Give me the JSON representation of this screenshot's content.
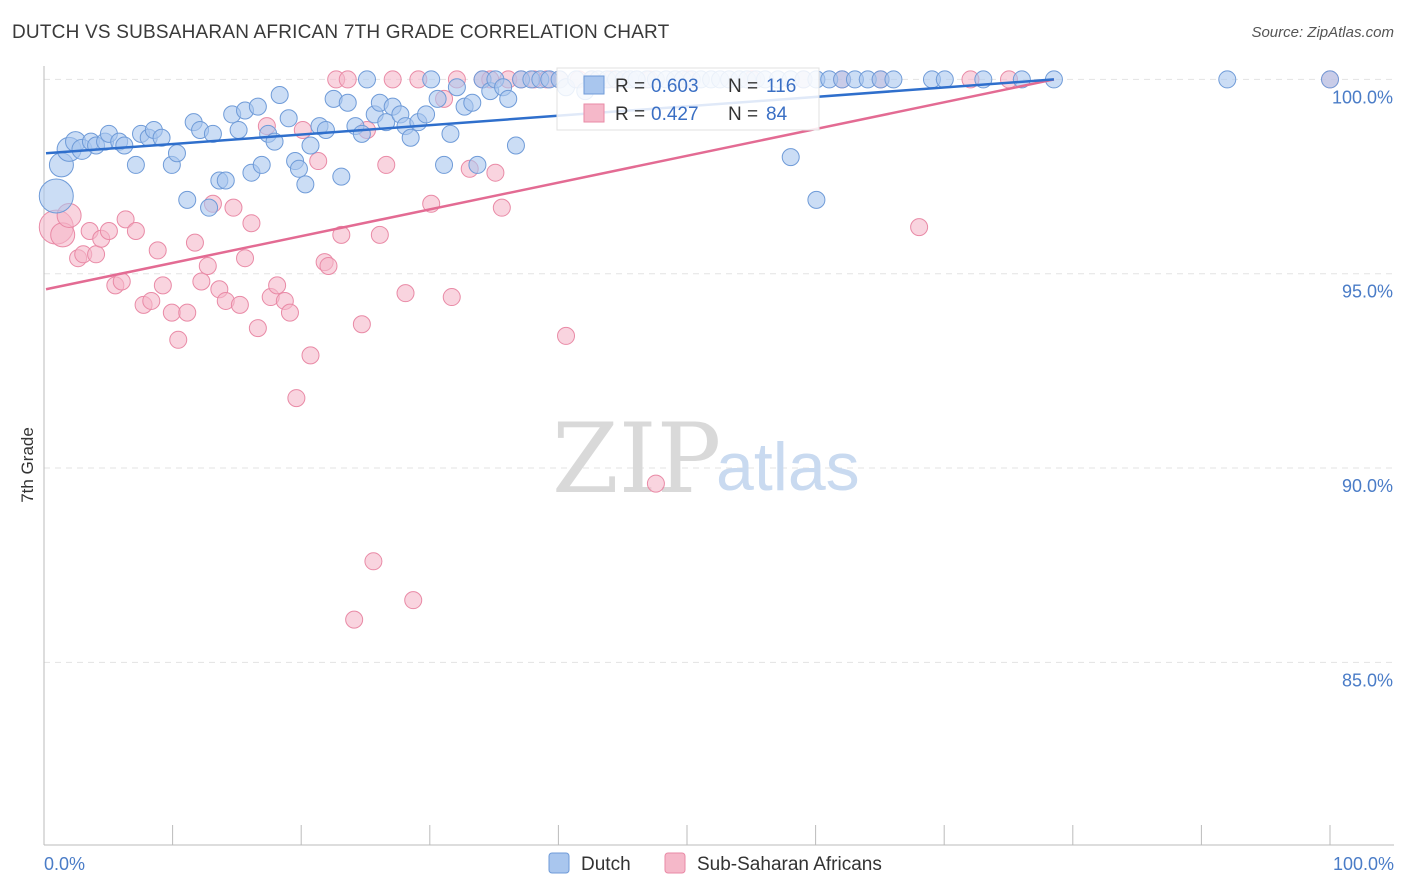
{
  "header": {
    "title": "DUTCH VS SUBSAHARAN AFRICAN 7TH GRADE CORRELATION CHART",
    "source": "Source: ZipAtlas.com"
  },
  "watermark": {
    "zip": "ZIP",
    "atlas": "atlas"
  },
  "colors": {
    "dutch_fill": "#a9c6ee",
    "dutch_stroke": "#6f9bd8",
    "dutch_line": "#2f6fcc",
    "african_fill": "#f5b8c9",
    "african_stroke": "#e98aa6",
    "african_line": "#e36b93",
    "grid": "#e3e3e3",
    "axis": "#bbbbbb"
  },
  "chart_data": {
    "type": "scatter",
    "title": "DUTCH VS SUBSAHARAN AFRICAN 7TH GRADE CORRELATION CHART",
    "xlabel": "",
    "ylabel": "7th Grade",
    "xlim": [
      0,
      100
    ],
    "ylim": [
      80.3,
      100.5
    ],
    "x_tick_labels": [
      "0.0%",
      "100.0%"
    ],
    "y_ticks": [
      100,
      95,
      90,
      85
    ],
    "y_tick_labels": [
      "100.0%",
      "95.0%",
      "90.0%",
      "85.0%"
    ],
    "grid": "horizontal dashed",
    "legend": [
      {
        "name": "Dutch",
        "color": "#a9c6ee"
      },
      {
        "name": "Sub-Saharan Africans",
        "color": "#f5b8c9"
      }
    ],
    "stats": [
      {
        "series": "Dutch",
        "r_label": "R =",
        "r": "0.603",
        "n_label": "N =",
        "n": "116"
      },
      {
        "series": "Sub-Saharan Africans",
        "r_label": "R =",
        "r": "0.427",
        "n_label": "N =",
        "n": "84"
      }
    ],
    "series": [
      {
        "name": "Dutch",
        "trend": {
          "x": [
            0,
            78.5
          ],
          "y": [
            98.1,
            100.0
          ]
        },
        "points": [
          [
            0.8,
            97.0,
            3
          ],
          [
            1.2,
            97.8,
            2
          ],
          [
            1.8,
            98.2,
            2
          ],
          [
            2.3,
            98.4,
            1.5
          ],
          [
            2.8,
            98.2,
            1.5
          ],
          [
            3.5,
            98.4,
            1
          ],
          [
            3.9,
            98.3,
            1
          ],
          [
            4.6,
            98.4,
            1
          ],
          [
            4.9,
            98.6,
            1
          ],
          [
            5.7,
            98.4,
            1
          ],
          [
            6.1,
            98.3,
            1
          ],
          [
            7.0,
            97.8,
            1
          ],
          [
            7.4,
            98.6,
            1
          ],
          [
            8.0,
            98.5,
            1
          ],
          [
            8.4,
            98.7,
            1
          ],
          [
            9.0,
            98.5,
            1
          ],
          [
            9.8,
            97.8,
            1
          ],
          [
            10.2,
            98.1,
            1
          ],
          [
            11.0,
            96.9,
            1
          ],
          [
            11.5,
            98.9,
            1
          ],
          [
            12.0,
            98.7,
            1
          ],
          [
            12.7,
            96.7,
            1
          ],
          [
            13.0,
            98.6,
            1
          ],
          [
            13.5,
            97.4,
            1
          ],
          [
            14.0,
            97.4,
            1
          ],
          [
            14.5,
            99.1,
            1
          ],
          [
            15.0,
            98.7,
            1
          ],
          [
            15.5,
            99.2,
            1
          ],
          [
            16.0,
            97.6,
            1
          ],
          [
            16.5,
            99.3,
            1
          ],
          [
            16.8,
            97.8,
            1
          ],
          [
            17.3,
            98.6,
            1
          ],
          [
            17.8,
            98.4,
            1
          ],
          [
            18.2,
            99.6,
            1
          ],
          [
            18.9,
            99.0,
            1
          ],
          [
            19.4,
            97.9,
            1
          ],
          [
            19.7,
            97.7,
            1
          ],
          [
            20.2,
            97.3,
            1
          ],
          [
            20.6,
            98.3,
            1
          ],
          [
            21.3,
            98.8,
            1
          ],
          [
            21.8,
            98.7,
            1
          ],
          [
            22.4,
            99.5,
            1
          ],
          [
            23.0,
            97.5,
            1
          ],
          [
            23.5,
            99.4,
            1
          ],
          [
            24.1,
            98.8,
            1
          ],
          [
            24.6,
            98.6,
            1
          ],
          [
            25.0,
            100.0,
            1
          ],
          [
            25.6,
            99.1,
            1
          ],
          [
            26.0,
            99.4,
            1
          ],
          [
            26.5,
            98.9,
            1
          ],
          [
            27.0,
            99.3,
            1
          ],
          [
            27.6,
            99.1,
            1
          ],
          [
            28.0,
            98.8,
            1
          ],
          [
            28.4,
            98.5,
            1
          ],
          [
            29.0,
            98.9,
            1
          ],
          [
            29.6,
            99.1,
            1
          ],
          [
            30.0,
            100.0,
            1
          ],
          [
            30.5,
            99.5,
            1
          ],
          [
            31.0,
            97.8,
            1
          ],
          [
            31.5,
            98.6,
            1
          ],
          [
            32.0,
            99.8,
            1
          ],
          [
            32.6,
            99.3,
            1
          ],
          [
            33.2,
            99.4,
            1
          ],
          [
            33.6,
            97.8,
            1
          ],
          [
            34.0,
            100.0,
            1
          ],
          [
            34.6,
            99.7,
            1
          ],
          [
            35.0,
            100.0,
            1
          ],
          [
            35.6,
            99.8,
            1
          ],
          [
            36.0,
            99.5,
            1
          ],
          [
            36.6,
            98.3,
            1
          ],
          [
            37.0,
            100.0,
            1
          ],
          [
            37.8,
            100.0,
            1
          ],
          [
            38.5,
            100.0,
            1
          ],
          [
            39.2,
            100.0,
            1
          ],
          [
            40.0,
            100.0,
            1
          ],
          [
            40.5,
            99.8,
            1
          ],
          [
            41.3,
            100.0,
            1
          ],
          [
            42.0,
            99.7,
            1
          ],
          [
            42.5,
            100.0,
            1
          ],
          [
            43.0,
            100.0,
            1
          ],
          [
            43.7,
            100.0,
            1
          ],
          [
            44.4,
            100.0,
            1
          ],
          [
            45.0,
            100.0,
            1
          ],
          [
            45.5,
            100.0,
            1
          ],
          [
            46.0,
            100.0,
            1
          ],
          [
            46.8,
            100.0,
            1
          ],
          [
            47.5,
            100.0,
            1
          ],
          [
            48.3,
            100.0,
            1
          ],
          [
            49.0,
            100.0,
            1
          ],
          [
            49.6,
            100.0,
            1
          ],
          [
            50.3,
            100.0,
            1
          ],
          [
            51.0,
            100.0,
            1
          ],
          [
            51.8,
            100.0,
            1
          ],
          [
            52.5,
            100.0,
            1
          ],
          [
            53.2,
            100.0,
            1
          ],
          [
            54.0,
            100.0,
            1
          ],
          [
            54.6,
            100.0,
            1
          ],
          [
            55.3,
            100.0,
            1
          ],
          [
            56.0,
            100.0,
            1
          ],
          [
            57.0,
            100.0,
            1
          ],
          [
            58.0,
            100.0,
            1
          ],
          [
            59.0,
            100.0,
            1
          ],
          [
            60.0,
            100.0,
            1
          ],
          [
            61.0,
            100.0,
            1
          ],
          [
            62.0,
            100.0,
            1
          ],
          [
            63.0,
            100.0,
            1
          ],
          [
            64.0,
            100.0,
            1
          ],
          [
            65.0,
            100.0,
            1
          ],
          [
            66.0,
            100.0,
            1
          ],
          [
            69.0,
            100.0,
            1
          ],
          [
            70.0,
            100.0,
            1
          ],
          [
            73.0,
            100.0,
            1
          ],
          [
            76.0,
            100.0,
            1
          ],
          [
            78.5,
            100.0,
            1
          ],
          [
            92.0,
            100.0,
            1
          ],
          [
            100.0,
            100.0,
            1
          ],
          [
            46.0,
            100.0,
            1
          ],
          [
            58.0,
            98.0,
            1
          ],
          [
            60.0,
            96.9,
            1
          ]
        ]
      },
      {
        "name": "Sub-Saharan Africans",
        "trend": {
          "x": [
            0,
            78.5
          ],
          "y": [
            94.6,
            100.0
          ]
        },
        "points": [
          [
            0.8,
            96.2,
            3
          ],
          [
            1.3,
            96.0,
            2
          ],
          [
            1.8,
            96.5,
            2
          ],
          [
            2.5,
            95.4,
            1
          ],
          [
            2.9,
            95.5,
            1
          ],
          [
            3.4,
            96.1,
            1
          ],
          [
            3.9,
            95.5,
            1
          ],
          [
            4.3,
            95.9,
            1
          ],
          [
            4.9,
            96.1,
            1
          ],
          [
            5.4,
            94.7,
            1
          ],
          [
            5.9,
            94.8,
            1
          ],
          [
            6.2,
            96.4,
            1
          ],
          [
            7.0,
            96.1,
            1
          ],
          [
            7.6,
            94.2,
            1
          ],
          [
            8.2,
            94.3,
            1
          ],
          [
            8.7,
            95.6,
            1
          ],
          [
            9.1,
            94.7,
            1
          ],
          [
            9.8,
            94.0,
            1
          ],
          [
            10.3,
            93.3,
            1
          ],
          [
            11.0,
            94.0,
            1
          ],
          [
            11.6,
            95.8,
            1
          ],
          [
            12.1,
            94.8,
            1
          ],
          [
            12.6,
            95.2,
            1
          ],
          [
            13.0,
            96.8,
            1
          ],
          [
            13.5,
            94.6,
            1
          ],
          [
            14.0,
            94.3,
            1
          ],
          [
            14.6,
            96.7,
            1
          ],
          [
            15.1,
            94.2,
            1
          ],
          [
            15.5,
            95.4,
            1
          ],
          [
            16.0,
            96.3,
            1
          ],
          [
            16.5,
            93.6,
            1
          ],
          [
            17.2,
            98.8,
            1
          ],
          [
            17.5,
            94.4,
            1
          ],
          [
            18.0,
            94.7,
            1
          ],
          [
            18.6,
            94.3,
            1
          ],
          [
            19.0,
            94.0,
            1
          ],
          [
            19.5,
            91.8,
            1
          ],
          [
            20.0,
            98.7,
            1
          ],
          [
            20.6,
            92.9,
            1
          ],
          [
            21.2,
            97.9,
            1
          ],
          [
            21.7,
            95.3,
            1
          ],
          [
            22.0,
            95.2,
            1
          ],
          [
            22.6,
            100.0,
            1
          ],
          [
            23.0,
            96.0,
            1
          ],
          [
            23.5,
            100.0,
            1
          ],
          [
            24.0,
            86.1,
            1
          ],
          [
            24.6,
            93.7,
            1
          ],
          [
            25.0,
            98.7,
            1
          ],
          [
            25.5,
            87.6,
            1
          ],
          [
            26.0,
            96.0,
            1
          ],
          [
            26.5,
            97.8,
            1
          ],
          [
            27.0,
            100.0,
            1
          ],
          [
            28.0,
            94.5,
            1
          ],
          [
            28.6,
            86.6,
            1
          ],
          [
            29.0,
            100.0,
            1
          ],
          [
            30.0,
            96.8,
            1
          ],
          [
            31.0,
            99.5,
            1
          ],
          [
            31.6,
            94.4,
            1
          ],
          [
            32.0,
            100.0,
            1
          ],
          [
            33.0,
            97.7,
            1
          ],
          [
            34.0,
            100.0,
            1
          ],
          [
            34.6,
            100.0,
            1
          ],
          [
            35.0,
            97.6,
            1
          ],
          [
            35.5,
            96.7,
            1
          ],
          [
            36.0,
            100.0,
            1
          ],
          [
            37.0,
            100.0,
            1
          ],
          [
            38.0,
            100.0,
            1
          ],
          [
            39.0,
            100.0,
            1
          ],
          [
            40.0,
            100.0,
            1
          ],
          [
            40.5,
            93.4,
            1
          ],
          [
            41.5,
            100.0,
            1
          ],
          [
            42.5,
            100.0,
            1
          ],
          [
            44.0,
            100.0,
            1
          ],
          [
            45.0,
            100.0,
            1
          ],
          [
            47.0,
            100.0,
            1
          ],
          [
            47.5,
            89.6,
            1
          ],
          [
            50.0,
            100.0,
            1
          ],
          [
            55.0,
            100.0,
            1
          ],
          [
            59.0,
            100.0,
            1
          ],
          [
            62.0,
            100.0,
            1
          ],
          [
            65.0,
            100.0,
            1
          ],
          [
            68.0,
            96.2,
            1
          ],
          [
            72.0,
            100.0,
            1
          ],
          [
            75.0,
            100.0,
            1
          ],
          [
            100.0,
            100.0,
            1
          ]
        ]
      }
    ]
  }
}
